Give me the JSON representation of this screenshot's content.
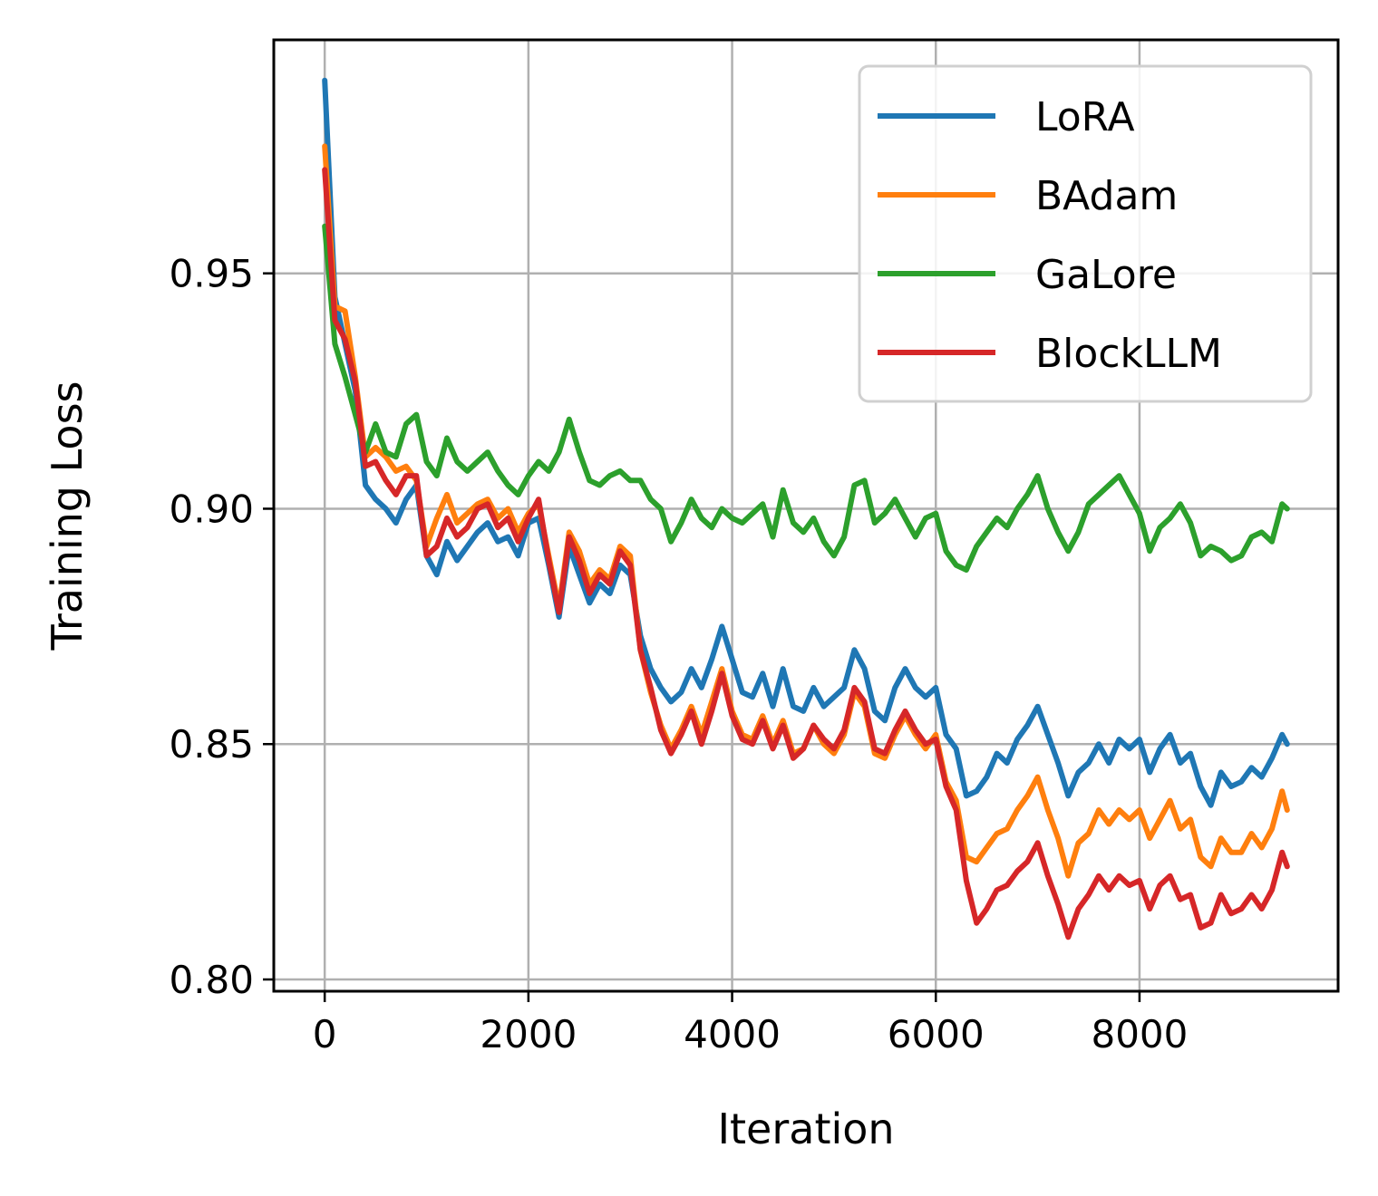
{
  "chart_data": {
    "type": "line",
    "title": "",
    "xlabel": "Iteration",
    "ylabel": "Training Loss",
    "xlim": [
      -500,
      9950
    ],
    "ylim": [
      0.7975,
      0.9996
    ],
    "xticks": [
      0,
      2000,
      4000,
      6000,
      8000
    ],
    "xtick_labels": [
      "0",
      "2000",
      "4000",
      "6000",
      "8000"
    ],
    "yticks": [
      0.8,
      0.85,
      0.9,
      0.95
    ],
    "ytick_labels": [
      "0.80",
      "0.85",
      "0.90",
      "0.95"
    ],
    "grid": true,
    "legend_position": "top-right",
    "series": [
      {
        "name": "LoRA",
        "color": "#1f77b4",
        "x": [
          0,
          100,
          200,
          300,
          400,
          500,
          600,
          700,
          800,
          900,
          1000,
          1100,
          1200,
          1300,
          1400,
          1500,
          1600,
          1700,
          1800,
          1900,
          2000,
          2100,
          2200,
          2300,
          2400,
          2500,
          2600,
          2700,
          2800,
          2900,
          3000,
          3100,
          3200,
          3300,
          3400,
          3500,
          3600,
          3700,
          3800,
          3900,
          4000,
          4100,
          4200,
          4300,
          4400,
          4500,
          4600,
          4700,
          4800,
          4900,
          5000,
          5100,
          5200,
          5300,
          5400,
          5500,
          5600,
          5700,
          5800,
          5900,
          6000,
          6100,
          6200,
          6300,
          6400,
          6500,
          6600,
          6700,
          6800,
          6900,
          7000,
          7100,
          7200,
          7300,
          7400,
          7500,
          7600,
          7700,
          7800,
          7900,
          8000,
          8100,
          8200,
          8300,
          8400,
          8500,
          8600,
          8700,
          8800,
          8900,
          9000,
          9100,
          9200,
          9300,
          9400,
          9450
        ],
        "y": [
          0.991,
          0.945,
          0.935,
          0.925,
          0.905,
          0.902,
          0.9,
          0.897,
          0.902,
          0.905,
          0.89,
          0.886,
          0.893,
          0.889,
          0.892,
          0.895,
          0.897,
          0.893,
          0.894,
          0.89,
          0.897,
          0.898,
          0.888,
          0.877,
          0.892,
          0.886,
          0.88,
          0.884,
          0.882,
          0.888,
          0.886,
          0.873,
          0.866,
          0.862,
          0.859,
          0.861,
          0.866,
          0.862,
          0.868,
          0.875,
          0.868,
          0.861,
          0.86,
          0.865,
          0.858,
          0.866,
          0.858,
          0.857,
          0.862,
          0.858,
          0.86,
          0.862,
          0.87,
          0.866,
          0.857,
          0.855,
          0.862,
          0.866,
          0.862,
          0.86,
          0.862,
          0.852,
          0.849,
          0.839,
          0.84,
          0.843,
          0.848,
          0.846,
          0.851,
          0.854,
          0.858,
          0.852,
          0.846,
          0.839,
          0.844,
          0.846,
          0.85,
          0.846,
          0.851,
          0.849,
          0.851,
          0.844,
          0.849,
          0.852,
          0.846,
          0.848,
          0.841,
          0.837,
          0.844,
          0.841,
          0.842,
          0.845,
          0.843,
          0.847,
          0.852,
          0.85
        ]
      },
      {
        "name": "BAdam",
        "color": "#ff7f0e",
        "x": [
          0,
          100,
          200,
          300,
          400,
          500,
          600,
          700,
          800,
          900,
          1000,
          1100,
          1200,
          1300,
          1400,
          1500,
          1600,
          1700,
          1800,
          1900,
          2000,
          2100,
          2200,
          2300,
          2400,
          2500,
          2600,
          2700,
          2800,
          2900,
          3000,
          3100,
          3200,
          3300,
          3400,
          3500,
          3600,
          3700,
          3800,
          3900,
          4000,
          4100,
          4200,
          4300,
          4400,
          4500,
          4600,
          4700,
          4800,
          4900,
          5000,
          5100,
          5200,
          5300,
          5400,
          5500,
          5600,
          5700,
          5800,
          5900,
          6000,
          6100,
          6200,
          6300,
          6400,
          6500,
          6600,
          6700,
          6800,
          6900,
          7000,
          7100,
          7200,
          7300,
          7400,
          7500,
          7600,
          7700,
          7800,
          7900,
          8000,
          8100,
          8200,
          8300,
          8400,
          8500,
          8600,
          8700,
          8800,
          8900,
          9000,
          9100,
          9200,
          9300,
          9400,
          9450
        ],
        "y": [
          0.977,
          0.943,
          0.942,
          0.928,
          0.911,
          0.913,
          0.911,
          0.908,
          0.909,
          0.906,
          0.892,
          0.898,
          0.903,
          0.897,
          0.899,
          0.901,
          0.902,
          0.898,
          0.9,
          0.895,
          0.899,
          0.901,
          0.89,
          0.879,
          0.895,
          0.891,
          0.884,
          0.887,
          0.885,
          0.892,
          0.89,
          0.87,
          0.861,
          0.854,
          0.849,
          0.853,
          0.858,
          0.852,
          0.859,
          0.866,
          0.857,
          0.852,
          0.851,
          0.856,
          0.85,
          0.855,
          0.848,
          0.849,
          0.854,
          0.85,
          0.848,
          0.852,
          0.861,
          0.858,
          0.848,
          0.847,
          0.852,
          0.856,
          0.852,
          0.849,
          0.852,
          0.842,
          0.838,
          0.826,
          0.825,
          0.828,
          0.831,
          0.832,
          0.836,
          0.839,
          0.843,
          0.836,
          0.83,
          0.822,
          0.829,
          0.831,
          0.836,
          0.833,
          0.836,
          0.834,
          0.836,
          0.83,
          0.834,
          0.838,
          0.832,
          0.834,
          0.826,
          0.824,
          0.83,
          0.827,
          0.827,
          0.831,
          0.828,
          0.832,
          0.84,
          0.836
        ]
      },
      {
        "name": "GaLore",
        "color": "#2ca02c",
        "x": [
          0,
          100,
          200,
          300,
          400,
          500,
          600,
          700,
          800,
          900,
          1000,
          1100,
          1200,
          1300,
          1400,
          1500,
          1600,
          1700,
          1800,
          1900,
          2000,
          2100,
          2200,
          2300,
          2400,
          2500,
          2600,
          2700,
          2800,
          2900,
          3000,
          3100,
          3200,
          3300,
          3400,
          3500,
          3600,
          3700,
          3800,
          3900,
          4000,
          4100,
          4200,
          4300,
          4400,
          4500,
          4600,
          4700,
          4800,
          4900,
          5000,
          5100,
          5200,
          5300,
          5400,
          5500,
          5600,
          5700,
          5800,
          5900,
          6000,
          6100,
          6200,
          6300,
          6400,
          6500,
          6600,
          6700,
          6800,
          6900,
          7000,
          7100,
          7200,
          7300,
          7400,
          7500,
          7600,
          7700,
          7800,
          7900,
          8000,
          8100,
          8200,
          8300,
          8400,
          8500,
          8600,
          8700,
          8800,
          8900,
          9000,
          9100,
          9200,
          9300,
          9400,
          9450
        ],
        "y": [
          0.96,
          0.935,
          0.928,
          0.92,
          0.912,
          0.918,
          0.912,
          0.911,
          0.918,
          0.92,
          0.91,
          0.907,
          0.915,
          0.91,
          0.908,
          0.91,
          0.912,
          0.908,
          0.905,
          0.903,
          0.907,
          0.91,
          0.908,
          0.912,
          0.919,
          0.912,
          0.906,
          0.905,
          0.907,
          0.908,
          0.906,
          0.906,
          0.902,
          0.9,
          0.893,
          0.897,
          0.902,
          0.898,
          0.896,
          0.9,
          0.898,
          0.897,
          0.899,
          0.901,
          0.894,
          0.904,
          0.897,
          0.895,
          0.898,
          0.893,
          0.89,
          0.894,
          0.905,
          0.906,
          0.897,
          0.899,
          0.902,
          0.898,
          0.894,
          0.898,
          0.899,
          0.891,
          0.888,
          0.887,
          0.892,
          0.895,
          0.898,
          0.896,
          0.9,
          0.903,
          0.907,
          0.9,
          0.895,
          0.891,
          0.895,
          0.901,
          0.903,
          0.905,
          0.907,
          0.903,
          0.899,
          0.891,
          0.896,
          0.898,
          0.901,
          0.897,
          0.89,
          0.892,
          0.891,
          0.889,
          0.89,
          0.894,
          0.895,
          0.893,
          0.901,
          0.9
        ]
      },
      {
        "name": "BlockLLM",
        "color": "#d62728",
        "x": [
          0,
          100,
          200,
          300,
          400,
          500,
          600,
          700,
          800,
          900,
          1000,
          1100,
          1200,
          1300,
          1400,
          1500,
          1600,
          1700,
          1800,
          1900,
          2000,
          2100,
          2200,
          2300,
          2400,
          2500,
          2600,
          2700,
          2800,
          2900,
          3000,
          3100,
          3200,
          3300,
          3400,
          3500,
          3600,
          3700,
          3800,
          3900,
          4000,
          4100,
          4200,
          4300,
          4400,
          4500,
          4600,
          4700,
          4800,
          4900,
          5000,
          5100,
          5200,
          5300,
          5400,
          5500,
          5600,
          5700,
          5800,
          5900,
          6000,
          6100,
          6200,
          6300,
          6400,
          6500,
          6600,
          6700,
          6800,
          6900,
          7000,
          7100,
          7200,
          7300,
          7400,
          7500,
          7600,
          7700,
          7800,
          7900,
          8000,
          8100,
          8200,
          8300,
          8400,
          8500,
          8600,
          8700,
          8800,
          8900,
          9000,
          9100,
          9200,
          9300,
          9400,
          9450
        ],
        "y": [
          0.972,
          0.94,
          0.936,
          0.927,
          0.909,
          0.91,
          0.906,
          0.903,
          0.907,
          0.907,
          0.89,
          0.892,
          0.898,
          0.894,
          0.896,
          0.9,
          0.901,
          0.896,
          0.898,
          0.893,
          0.898,
          0.902,
          0.889,
          0.878,
          0.894,
          0.889,
          0.882,
          0.886,
          0.884,
          0.891,
          0.888,
          0.87,
          0.862,
          0.853,
          0.848,
          0.852,
          0.857,
          0.85,
          0.857,
          0.865,
          0.856,
          0.851,
          0.85,
          0.855,
          0.849,
          0.854,
          0.847,
          0.849,
          0.854,
          0.851,
          0.849,
          0.853,
          0.862,
          0.859,
          0.849,
          0.848,
          0.853,
          0.857,
          0.853,
          0.85,
          0.851,
          0.841,
          0.836,
          0.821,
          0.812,
          0.815,
          0.819,
          0.82,
          0.823,
          0.825,
          0.829,
          0.822,
          0.816,
          0.809,
          0.815,
          0.818,
          0.822,
          0.819,
          0.822,
          0.82,
          0.821,
          0.815,
          0.82,
          0.822,
          0.817,
          0.818,
          0.811,
          0.812,
          0.818,
          0.814,
          0.815,
          0.818,
          0.815,
          0.819,
          0.827,
          0.824
        ]
      }
    ]
  }
}
